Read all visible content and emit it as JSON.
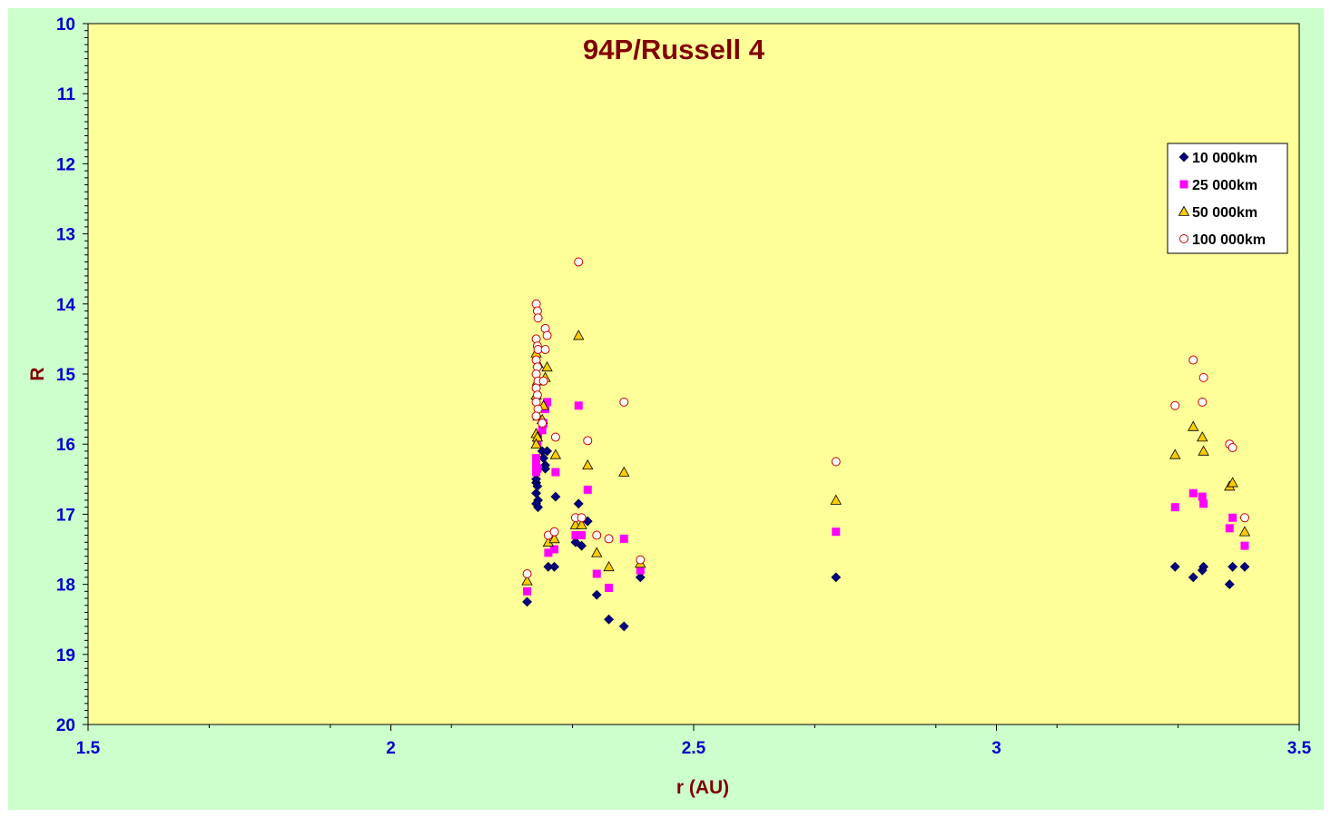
{
  "chart_data": {
    "type": "scatter",
    "title": "94P/Russell 4",
    "xlabel": "r (AU)",
    "ylabel": "R",
    "xlim": [
      1.5,
      3.5
    ],
    "ylim": [
      10,
      20
    ],
    "y_inverted": true,
    "x_ticks": [
      "1.5",
      "2",
      "2.5",
      "3",
      "3.5"
    ],
    "y_ticks": [
      "10",
      "11",
      "12",
      "13",
      "14",
      "15",
      "16",
      "17",
      "18",
      "19",
      "20"
    ],
    "grid": false,
    "legend_position": "top-right",
    "colors": {
      "page_background": "#ccffcc",
      "plot_background": "#ffff99",
      "title": "#800000",
      "tick_labels": "#0000cc"
    },
    "series": [
      {
        "name": "10 000km",
        "marker": "diamond",
        "color": "#000080",
        "points": [
          [
            2.225,
            18.25
          ],
          [
            2.24,
            16.55
          ],
          [
            2.242,
            16.6
          ],
          [
            2.24,
            16.7
          ],
          [
            2.243,
            16.8
          ],
          [
            2.24,
            16.85
          ],
          [
            2.243,
            16.9
          ],
          [
            2.24,
            16.5
          ],
          [
            2.25,
            16.1
          ],
          [
            2.252,
            16.2
          ],
          [
            2.255,
            16.3
          ],
          [
            2.255,
            16.35
          ],
          [
            2.258,
            16.1
          ],
          [
            2.26,
            17.75
          ],
          [
            2.27,
            17.75
          ],
          [
            2.272,
            16.75
          ],
          [
            2.305,
            17.4
          ],
          [
            2.31,
            16.85
          ],
          [
            2.315,
            17.45
          ],
          [
            2.325,
            17.1
          ],
          [
            2.34,
            18.15
          ],
          [
            2.36,
            18.5
          ],
          [
            2.385,
            18.6
          ],
          [
            2.412,
            17.9
          ],
          [
            2.735,
            17.9
          ],
          [
            3.295,
            17.75
          ],
          [
            3.325,
            17.9
          ],
          [
            3.34,
            17.8
          ],
          [
            3.342,
            17.75
          ],
          [
            3.385,
            18.0
          ],
          [
            3.39,
            17.75
          ],
          [
            3.41,
            17.75
          ]
        ]
      },
      {
        "name": "25 000km",
        "marker": "square",
        "color": "#ff00ff",
        "points": [
          [
            2.225,
            18.1
          ],
          [
            2.24,
            16.2
          ],
          [
            2.24,
            16.3
          ],
          [
            2.242,
            16.35
          ],
          [
            2.24,
            16.4
          ],
          [
            2.242,
            16.0
          ],
          [
            2.243,
            15.9
          ],
          [
            2.25,
            15.8
          ],
          [
            2.252,
            15.7
          ],
          [
            2.255,
            15.5
          ],
          [
            2.258,
            15.4
          ],
          [
            2.26,
            17.55
          ],
          [
            2.27,
            17.5
          ],
          [
            2.272,
            16.4
          ],
          [
            2.305,
            17.3
          ],
          [
            2.31,
            15.45
          ],
          [
            2.315,
            17.3
          ],
          [
            2.325,
            16.65
          ],
          [
            2.34,
            17.85
          ],
          [
            2.36,
            18.05
          ],
          [
            2.385,
            17.35
          ],
          [
            2.412,
            17.8
          ],
          [
            2.735,
            17.25
          ],
          [
            3.295,
            16.9
          ],
          [
            3.325,
            16.7
          ],
          [
            3.34,
            16.75
          ],
          [
            3.342,
            16.85
          ],
          [
            3.385,
            17.2
          ],
          [
            3.39,
            17.05
          ],
          [
            3.41,
            17.45
          ]
        ]
      },
      {
        "name": "50 000km",
        "marker": "triangle",
        "color": "#ffcc00",
        "points": [
          [
            2.225,
            17.95
          ],
          [
            2.24,
            15.85
          ],
          [
            2.242,
            15.9
          ],
          [
            2.24,
            16.0
          ],
          [
            2.243,
            15.6
          ],
          [
            2.24,
            15.3
          ],
          [
            2.242,
            15.1
          ],
          [
            2.243,
            14.85
          ],
          [
            2.24,
            14.7
          ],
          [
            2.25,
            15.65
          ],
          [
            2.252,
            15.45
          ],
          [
            2.255,
            15.05
          ],
          [
            2.258,
            14.9
          ],
          [
            2.26,
            17.4
          ],
          [
            2.27,
            17.35
          ],
          [
            2.272,
            16.15
          ],
          [
            2.305,
            17.15
          ],
          [
            2.31,
            14.45
          ],
          [
            2.315,
            17.15
          ],
          [
            2.325,
            16.3
          ],
          [
            2.34,
            17.55
          ],
          [
            2.36,
            17.75
          ],
          [
            2.385,
            16.4
          ],
          [
            2.412,
            17.7
          ],
          [
            2.735,
            16.8
          ],
          [
            3.295,
            16.15
          ],
          [
            3.325,
            15.75
          ],
          [
            3.34,
            15.9
          ],
          [
            3.342,
            16.1
          ],
          [
            3.385,
            16.6
          ],
          [
            3.39,
            16.55
          ],
          [
            3.41,
            17.25
          ]
        ]
      },
      {
        "name": "100 000km",
        "marker": "circle",
        "color": "#cc0000",
        "points": [
          [
            2.225,
            17.85
          ],
          [
            2.24,
            14.0
          ],
          [
            2.242,
            14.1
          ],
          [
            2.243,
            14.2
          ],
          [
            2.24,
            14.5
          ],
          [
            2.242,
            14.6
          ],
          [
            2.243,
            14.65
          ],
          [
            2.24,
            14.8
          ],
          [
            2.242,
            14.9
          ],
          [
            2.24,
            15.0
          ],
          [
            2.243,
            15.1
          ],
          [
            2.24,
            15.2
          ],
          [
            2.242,
            15.3
          ],
          [
            2.24,
            15.4
          ],
          [
            2.243,
            15.5
          ],
          [
            2.24,
            15.6
          ],
          [
            2.25,
            15.7
          ],
          [
            2.252,
            15.1
          ],
          [
            2.255,
            14.35
          ],
          [
            2.255,
            14.65
          ],
          [
            2.258,
            14.45
          ],
          [
            2.26,
            17.3
          ],
          [
            2.27,
            17.25
          ],
          [
            2.272,
            15.9
          ],
          [
            2.305,
            17.05
          ],
          [
            2.31,
            13.4
          ],
          [
            2.315,
            17.05
          ],
          [
            2.325,
            15.95
          ],
          [
            2.34,
            17.3
          ],
          [
            2.36,
            17.35
          ],
          [
            2.385,
            15.4
          ],
          [
            2.412,
            17.65
          ],
          [
            2.735,
            16.25
          ],
          [
            3.295,
            15.45
          ],
          [
            3.325,
            14.8
          ],
          [
            3.34,
            15.4
          ],
          [
            3.342,
            15.05
          ],
          [
            3.385,
            16.0
          ],
          [
            3.39,
            16.05
          ],
          [
            3.41,
            17.05
          ]
        ]
      }
    ]
  }
}
